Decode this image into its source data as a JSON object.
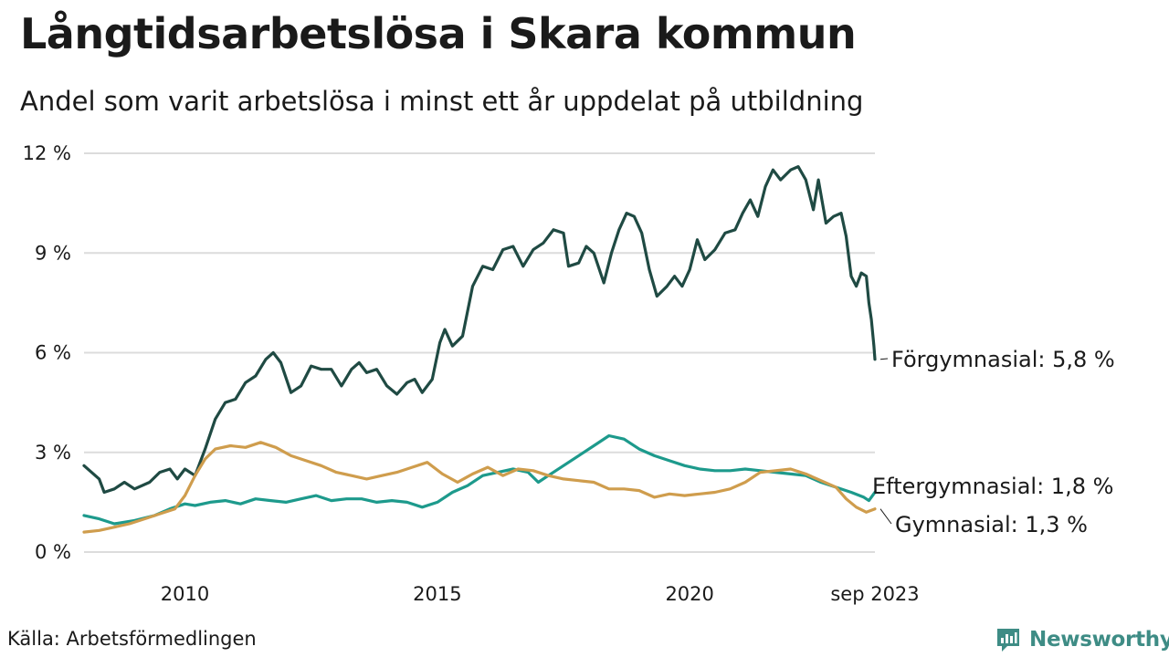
{
  "title": "Långtidsarbetslösa i Skara kommun",
  "subtitle": "Andel som varit arbetslösa i minst ett år uppdelat på utbildning",
  "source": "Källa: Arbetsförmedlingen",
  "logo": {
    "text": "Newsworthy",
    "icon": "newsworthy-chart-icon",
    "color": "#3e8c85"
  },
  "chart_data": {
    "type": "line",
    "title": "Långtidsarbetslösa i Skara kommun",
    "subtitle": "Andel som varit arbetslösa i minst ett år uppdelat på utbildning",
    "xlabel": "",
    "ylabel": "",
    "xlim": [
      2008.0,
      2023.67
    ],
    "ylim": [
      0,
      12
    ],
    "grid": true,
    "y_ticks": [
      {
        "value": 0,
        "label": "0 %"
      },
      {
        "value": 3,
        "label": "3 %"
      },
      {
        "value": 6,
        "label": "6 %"
      },
      {
        "value": 9,
        "label": "9 %"
      },
      {
        "value": 12,
        "label": "12 %"
      }
    ],
    "x_ticks": [
      {
        "value": 2010,
        "label": "2010"
      },
      {
        "value": 2015,
        "label": "2015"
      },
      {
        "value": 2020,
        "label": "2020"
      },
      {
        "value": 2023.67,
        "label": "sep 2023"
      }
    ],
    "series": [
      {
        "name": "Förgymnasial",
        "label": "Förgymnasial: 5,8 %",
        "color": "#1f4a43",
        "points": [
          [
            2008.0,
            2.6
          ],
          [
            2008.3,
            2.2
          ],
          [
            2008.4,
            1.8
          ],
          [
            2008.6,
            1.9
          ],
          [
            2008.8,
            2.1
          ],
          [
            2009.0,
            1.9
          ],
          [
            2009.3,
            2.1
          ],
          [
            2009.5,
            2.4
          ],
          [
            2009.7,
            2.5
          ],
          [
            2009.85,
            2.2
          ],
          [
            2010.0,
            2.5
          ],
          [
            2010.2,
            2.3
          ],
          [
            2010.4,
            3.1
          ],
          [
            2010.6,
            4.0
          ],
          [
            2010.8,
            4.5
          ],
          [
            2011.0,
            4.6
          ],
          [
            2011.2,
            5.1
          ],
          [
            2011.4,
            5.3
          ],
          [
            2011.6,
            5.8
          ],
          [
            2011.75,
            6.0
          ],
          [
            2011.9,
            5.7
          ],
          [
            2012.1,
            4.8
          ],
          [
            2012.3,
            5.0
          ],
          [
            2012.5,
            5.6
          ],
          [
            2012.7,
            5.5
          ],
          [
            2012.9,
            5.5
          ],
          [
            2013.1,
            5.0
          ],
          [
            2013.3,
            5.5
          ],
          [
            2013.45,
            5.7
          ],
          [
            2013.6,
            5.4
          ],
          [
            2013.8,
            5.5
          ],
          [
            2014.0,
            5.0
          ],
          [
            2014.2,
            4.75
          ],
          [
            2014.4,
            5.1
          ],
          [
            2014.55,
            5.2
          ],
          [
            2014.7,
            4.8
          ],
          [
            2014.9,
            5.2
          ],
          [
            2015.05,
            6.3
          ],
          [
            2015.15,
            6.7
          ],
          [
            2015.3,
            6.2
          ],
          [
            2015.5,
            6.5
          ],
          [
            2015.7,
            8.0
          ],
          [
            2015.9,
            8.6
          ],
          [
            2016.1,
            8.5
          ],
          [
            2016.3,
            9.1
          ],
          [
            2016.5,
            9.2
          ],
          [
            2016.7,
            8.6
          ],
          [
            2016.9,
            9.1
          ],
          [
            2017.1,
            9.3
          ],
          [
            2017.3,
            9.7
          ],
          [
            2017.5,
            9.6
          ],
          [
            2017.6,
            8.6
          ],
          [
            2017.8,
            8.7
          ],
          [
            2017.95,
            9.2
          ],
          [
            2018.1,
            9.0
          ],
          [
            2018.3,
            8.1
          ],
          [
            2018.45,
            9.0
          ],
          [
            2018.6,
            9.7
          ],
          [
            2018.75,
            10.2
          ],
          [
            2018.9,
            10.1
          ],
          [
            2019.05,
            9.6
          ],
          [
            2019.2,
            8.5
          ],
          [
            2019.35,
            7.7
          ],
          [
            2019.55,
            8.0
          ],
          [
            2019.7,
            8.3
          ],
          [
            2019.85,
            8.0
          ],
          [
            2020.0,
            8.5
          ],
          [
            2020.15,
            9.4
          ],
          [
            2020.3,
            8.8
          ],
          [
            2020.5,
            9.1
          ],
          [
            2020.7,
            9.6
          ],
          [
            2020.9,
            9.7
          ],
          [
            2021.05,
            10.2
          ],
          [
            2021.2,
            10.6
          ],
          [
            2021.35,
            10.1
          ],
          [
            2021.5,
            11.0
          ],
          [
            2021.65,
            11.5
          ],
          [
            2021.8,
            11.2
          ],
          [
            2022.0,
            11.5
          ],
          [
            2022.15,
            11.6
          ],
          [
            2022.3,
            11.2
          ],
          [
            2022.45,
            10.3
          ],
          [
            2022.55,
            11.2
          ],
          [
            2022.7,
            9.9
          ],
          [
            2022.85,
            10.1
          ],
          [
            2023.0,
            10.2
          ],
          [
            2023.1,
            9.5
          ],
          [
            2023.2,
            8.3
          ],
          [
            2023.3,
            8.0
          ],
          [
            2023.4,
            8.4
          ],
          [
            2023.5,
            8.3
          ],
          [
            2023.55,
            7.5
          ],
          [
            2023.6,
            7.0
          ],
          [
            2023.65,
            6.2
          ],
          [
            2023.67,
            5.8
          ]
        ]
      },
      {
        "name": "Eftergymnasial",
        "label": "Eftergymnasial: 1,8 %",
        "color": "#1d9a8c",
        "points": [
          [
            2008.0,
            1.1
          ],
          [
            2008.3,
            1.0
          ],
          [
            2008.6,
            0.85
          ],
          [
            2009.0,
            0.95
          ],
          [
            2009.4,
            1.1
          ],
          [
            2009.7,
            1.3
          ],
          [
            2010.0,
            1.45
          ],
          [
            2010.2,
            1.4
          ],
          [
            2010.5,
            1.5
          ],
          [
            2010.8,
            1.55
          ],
          [
            2011.1,
            1.45
          ],
          [
            2011.4,
            1.6
          ],
          [
            2011.7,
            1.55
          ],
          [
            2012.0,
            1.5
          ],
          [
            2012.3,
            1.6
          ],
          [
            2012.6,
            1.7
          ],
          [
            2012.9,
            1.55
          ],
          [
            2013.2,
            1.6
          ],
          [
            2013.5,
            1.6
          ],
          [
            2013.8,
            1.5
          ],
          [
            2014.1,
            1.55
          ],
          [
            2014.4,
            1.5
          ],
          [
            2014.7,
            1.35
          ],
          [
            2015.0,
            1.5
          ],
          [
            2015.3,
            1.8
          ],
          [
            2015.6,
            2.0
          ],
          [
            2015.9,
            2.3
          ],
          [
            2016.2,
            2.4
          ],
          [
            2016.5,
            2.5
          ],
          [
            2016.8,
            2.4
          ],
          [
            2017.0,
            2.1
          ],
          [
            2017.2,
            2.3
          ],
          [
            2017.5,
            2.6
          ],
          [
            2017.8,
            2.9
          ],
          [
            2018.1,
            3.2
          ],
          [
            2018.4,
            3.5
          ],
          [
            2018.7,
            3.4
          ],
          [
            2019.0,
            3.1
          ],
          [
            2019.3,
            2.9
          ],
          [
            2019.6,
            2.75
          ],
          [
            2019.9,
            2.6
          ],
          [
            2020.2,
            2.5
          ],
          [
            2020.5,
            2.45
          ],
          [
            2020.8,
            2.45
          ],
          [
            2021.1,
            2.5
          ],
          [
            2021.4,
            2.45
          ],
          [
            2021.7,
            2.4
          ],
          [
            2022.0,
            2.35
          ],
          [
            2022.3,
            2.3
          ],
          [
            2022.6,
            2.1
          ],
          [
            2022.9,
            1.95
          ],
          [
            2023.2,
            1.8
          ],
          [
            2023.45,
            1.65
          ],
          [
            2023.55,
            1.55
          ],
          [
            2023.67,
            1.8
          ]
        ]
      },
      {
        "name": "Gymnasial",
        "label": "Gymnasial: 1,3 %",
        "color": "#cf9d4d",
        "points": [
          [
            2008.0,
            0.6
          ],
          [
            2008.3,
            0.65
          ],
          [
            2008.6,
            0.75
          ],
          [
            2008.9,
            0.85
          ],
          [
            2009.2,
            1.0
          ],
          [
            2009.5,
            1.15
          ],
          [
            2009.8,
            1.3
          ],
          [
            2010.0,
            1.7
          ],
          [
            2010.2,
            2.3
          ],
          [
            2010.4,
            2.8
          ],
          [
            2010.6,
            3.1
          ],
          [
            2010.9,
            3.2
          ],
          [
            2011.2,
            3.15
          ],
          [
            2011.5,
            3.3
          ],
          [
            2011.8,
            3.15
          ],
          [
            2012.1,
            2.9
          ],
          [
            2012.4,
            2.75
          ],
          [
            2012.7,
            2.6
          ],
          [
            2013.0,
            2.4
          ],
          [
            2013.3,
            2.3
          ],
          [
            2013.6,
            2.2
          ],
          [
            2013.9,
            2.3
          ],
          [
            2014.2,
            2.4
          ],
          [
            2014.5,
            2.55
          ],
          [
            2014.8,
            2.7
          ],
          [
            2015.1,
            2.35
          ],
          [
            2015.4,
            2.1
          ],
          [
            2015.7,
            2.35
          ],
          [
            2016.0,
            2.55
          ],
          [
            2016.3,
            2.3
          ],
          [
            2016.6,
            2.5
          ],
          [
            2016.9,
            2.45
          ],
          [
            2017.2,
            2.3
          ],
          [
            2017.5,
            2.2
          ],
          [
            2017.8,
            2.15
          ],
          [
            2018.1,
            2.1
          ],
          [
            2018.4,
            1.9
          ],
          [
            2018.7,
            1.9
          ],
          [
            2019.0,
            1.85
          ],
          [
            2019.3,
            1.65
          ],
          [
            2019.6,
            1.75
          ],
          [
            2019.9,
            1.7
          ],
          [
            2020.2,
            1.75
          ],
          [
            2020.5,
            1.8
          ],
          [
            2020.8,
            1.9
          ],
          [
            2021.1,
            2.1
          ],
          [
            2021.4,
            2.4
          ],
          [
            2021.7,
            2.45
          ],
          [
            2022.0,
            2.5
          ],
          [
            2022.3,
            2.35
          ],
          [
            2022.6,
            2.15
          ],
          [
            2022.9,
            1.95
          ],
          [
            2023.1,
            1.6
          ],
          [
            2023.3,
            1.35
          ],
          [
            2023.5,
            1.2
          ],
          [
            2023.67,
            1.3
          ]
        ]
      }
    ]
  }
}
